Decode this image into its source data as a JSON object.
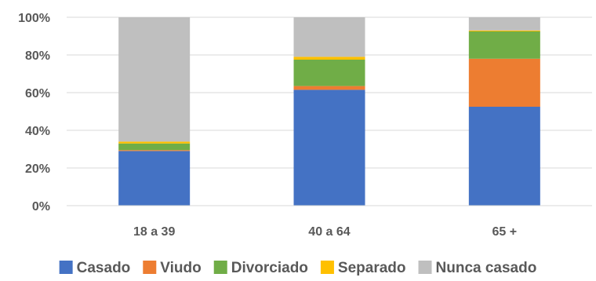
{
  "chart_data": {
    "type": "bar",
    "stacked": true,
    "categories": [
      "18 a 39",
      "40 a 64",
      "65 +"
    ],
    "series": [
      {
        "name": "Casado",
        "color": "#4472C4",
        "values": [
          29,
          61.5,
          52.5
        ]
      },
      {
        "name": "Viudo",
        "color": "#ED7D31",
        "values": [
          0.5,
          2,
          25.5
        ]
      },
      {
        "name": "Divorciado",
        "color": "#70AD47",
        "values": [
          3.5,
          14,
          14.5
        ]
      },
      {
        "name": "Separado",
        "color": "#FFC000",
        "values": [
          1,
          1.5,
          0.5
        ]
      },
      {
        "name": "Nunca casado",
        "color": "#BFBFBF",
        "values": [
          66,
          21,
          7
        ]
      }
    ],
    "ylim": [
      0,
      100
    ],
    "y_ticks": [
      "0%",
      "20%",
      "40%",
      "60%",
      "80%",
      "100%"
    ],
    "grid": true,
    "legend": "bottom",
    "title": "",
    "xlabel": "",
    "ylabel": ""
  }
}
